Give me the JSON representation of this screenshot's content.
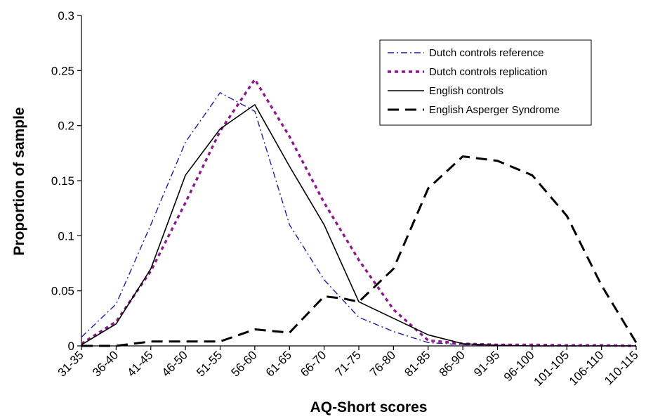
{
  "chart_data": {
    "type": "line",
    "title": "",
    "xlabel": "AQ-Short scores",
    "ylabel": "Proportion of sample",
    "ylim": [
      0,
      0.3
    ],
    "yticks": [
      0,
      0.05,
      0.1,
      0.15,
      0.2,
      0.25,
      0.3
    ],
    "ytick_labels": [
      "0",
      "0.05",
      "0.1",
      "0.15",
      "0.2",
      "0.25",
      "0.3"
    ],
    "grid": false,
    "legend_position": "top-right",
    "categories": [
      "31-35",
      "36-40",
      "41-45",
      "46-50",
      "51-55",
      "56-60",
      "61-65",
      "66-70",
      "71-75",
      "76-80",
      "81-85",
      "86-90",
      "91-95",
      "96-100",
      "101-105",
      "106-110",
      "110-115"
    ],
    "series": [
      {
        "name": "Dutch controls reference",
        "color": "#1f1f99",
        "style": "dashdot",
        "x": [
          0,
          1,
          2,
          3,
          4,
          5,
          6,
          7,
          8,
          9,
          10,
          11,
          12,
          13,
          14,
          15,
          16
        ],
        "values": [
          0.008,
          0.038,
          0.11,
          0.185,
          0.23,
          0.213,
          0.11,
          0.06,
          0.026,
          0.013,
          0.003,
          0.001,
          0.0005,
          0.0,
          0.0,
          0.0,
          0.0
        ]
      },
      {
        "name": "Dutch controls replication",
        "color": "#8b1a8b",
        "style": "dotted",
        "x": [
          0,
          1,
          2,
          3,
          4,
          5,
          6,
          7,
          8,
          9,
          10,
          11,
          12,
          13,
          14,
          15,
          16
        ],
        "values": [
          0.002,
          0.022,
          0.068,
          0.13,
          0.195,
          0.242,
          0.19,
          0.13,
          0.078,
          0.033,
          0.005,
          0.002,
          0.001,
          0.001,
          0.0005,
          0.0005,
          0.0
        ]
      },
      {
        "name": "English controls",
        "color": "#000000",
        "style": "solid",
        "x": [
          0,
          1,
          2,
          3,
          4,
          5,
          6,
          7,
          8,
          9,
          10,
          11,
          12,
          13,
          14,
          15,
          16
        ],
        "values": [
          0.001,
          0.02,
          0.07,
          0.155,
          0.197,
          0.219,
          0.163,
          0.11,
          0.04,
          0.025,
          0.01,
          0.002,
          0.0005,
          0.0,
          0.0,
          0.0,
          0.0
        ]
      },
      {
        "name": "English Asperger Syndrome",
        "color": "#000000",
        "style": "dashed",
        "x": [
          0,
          1,
          2,
          3,
          4,
          5,
          6,
          7,
          7.55,
          8,
          9,
          10,
          11,
          12,
          13,
          14,
          15,
          16
        ],
        "values": [
          0.0,
          0.0,
          0.004,
          0.004,
          0.004,
          0.015,
          0.012,
          0.045,
          0.043,
          0.04,
          0.07,
          0.143,
          0.172,
          0.168,
          0.155,
          0.118,
          0.055,
          0.003
        ]
      }
    ]
  }
}
